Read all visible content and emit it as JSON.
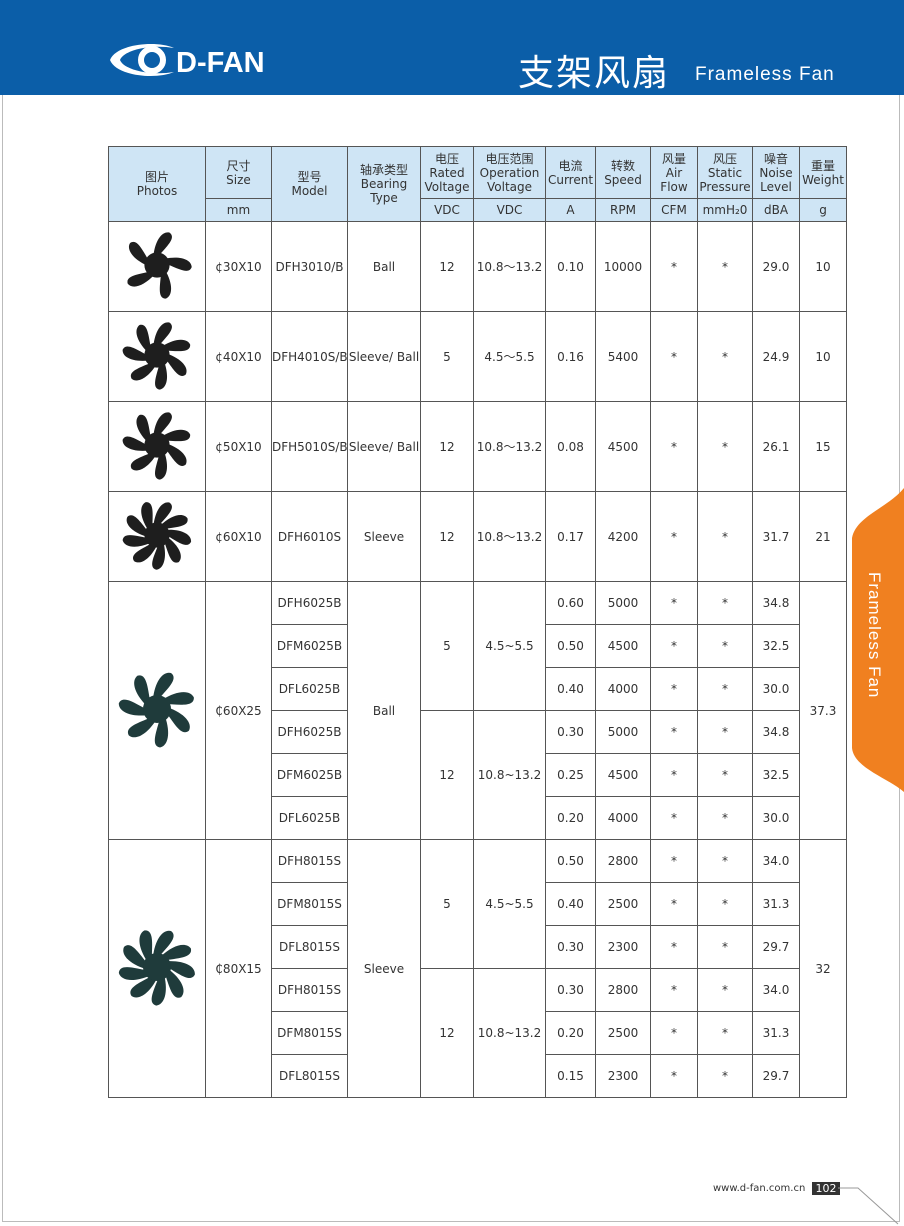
{
  "header": {
    "logo": "D-FAN",
    "title_cn": "支架风扇",
    "title_en": "Frameless Fan"
  },
  "side_tab": "Frameless Fan",
  "table": {
    "columns": [
      {
        "lines": [
          "图片",
          "Photos"
        ]
      },
      {
        "lines": [
          "尺寸",
          "Size"
        ],
        "unit": "mm"
      },
      {
        "lines": [
          "型号",
          "Model"
        ]
      },
      {
        "lines": [
          "轴承类型",
          "Bearing",
          "Type"
        ]
      },
      {
        "lines": [
          "电压",
          "Rated",
          "Voltage"
        ],
        "unit": "VDC"
      },
      {
        "lines": [
          "电压范围",
          "Operation",
          "Voltage"
        ],
        "unit": "VDC"
      },
      {
        "lines": [
          "电流",
          "Current"
        ],
        "unit": "A"
      },
      {
        "lines": [
          "转数",
          "Speed"
        ],
        "unit": "RPM"
      },
      {
        "lines": [
          "风量",
          "Air",
          "Flow"
        ],
        "unit": "CFM"
      },
      {
        "lines": [
          "风压",
          "Static",
          "Pressure"
        ],
        "unit": "mmH₂0"
      },
      {
        "lines": [
          "噪音",
          "Noise",
          "Level"
        ],
        "unit": "dBA"
      },
      {
        "lines": [
          "重量",
          "Weight"
        ],
        "unit": "g"
      }
    ],
    "groups": [
      {
        "size": "¢30X10",
        "bearing": "Ball",
        "weight": "10",
        "voltage_groups": [
          {
            "voltage": "12",
            "range": "10.8～13.2",
            "models": [
              {
                "model": "DFH3010/B",
                "current": "0.10",
                "speed": "10000",
                "airflow": "*",
                "pressure": "*",
                "noise": "29.0"
              }
            ]
          }
        ]
      },
      {
        "size": "¢40X10",
        "bearing": "Sleeve/ Ball",
        "weight": "10",
        "voltage_groups": [
          {
            "voltage": "5",
            "range": "4.5～5.5",
            "models": [
              {
                "model": "DFH4010S/B",
                "current": "0.16",
                "speed": "5400",
                "airflow": "*",
                "pressure": "*",
                "noise": "24.9"
              }
            ]
          }
        ]
      },
      {
        "size": "¢50X10",
        "bearing": "Sleeve/ Ball",
        "weight": "15",
        "voltage_groups": [
          {
            "voltage": "12",
            "range": "10.8～13.2",
            "models": [
              {
                "model": "DFH5010S/B",
                "current": "0.08",
                "speed": "4500",
                "airflow": "*",
                "pressure": "*",
                "noise": "26.1"
              }
            ]
          }
        ]
      },
      {
        "size": "¢60X10",
        "bearing": "Sleeve",
        "weight": "21",
        "voltage_groups": [
          {
            "voltage": "12",
            "range": "10.8～13.2",
            "models": [
              {
                "model": "DFH6010S",
                "current": "0.17",
                "speed": "4200",
                "airflow": "*",
                "pressure": "*",
                "noise": "31.7"
              }
            ]
          }
        ]
      },
      {
        "size": "₵60X25",
        "bearing": "Ball",
        "weight": "37.3",
        "voltage_groups": [
          {
            "voltage": "5",
            "range": "4.5~5.5",
            "models": [
              {
                "model": "DFH6025B",
                "current": "0.60",
                "speed": "5000",
                "airflow": "*",
                "pressure": "*",
                "noise": "34.8"
              },
              {
                "model": "DFM6025B",
                "current": "0.50",
                "speed": "4500",
                "airflow": "*",
                "pressure": "*",
                "noise": "32.5"
              },
              {
                "model": "DFL6025B",
                "current": "0.40",
                "speed": "4000",
                "airflow": "*",
                "pressure": "*",
                "noise": "30.0"
              }
            ]
          },
          {
            "voltage": "12",
            "range": "10.8~13.2",
            "models": [
              {
                "model": "DFH6025B",
                "current": "0.30",
                "speed": "5000",
                "airflow": "*",
                "pressure": "*",
                "noise": "34.8"
              },
              {
                "model": "DFM6025B",
                "current": "0.25",
                "speed": "4500",
                "airflow": "*",
                "pressure": "*",
                "noise": "32.5"
              },
              {
                "model": "DFL6025B",
                "current": "0.20",
                "speed": "4000",
                "airflow": "*",
                "pressure": "*",
                "noise": "30.0"
              }
            ]
          }
        ]
      },
      {
        "size": "₵80X15",
        "bearing": "Sleeve",
        "weight": "32",
        "voltage_groups": [
          {
            "voltage": "5",
            "range": "4.5~5.5",
            "models": [
              {
                "model": "DFH8015S",
                "current": "0.50",
                "speed": "2800",
                "airflow": "*",
                "pressure": "*",
                "noise": "34.0"
              },
              {
                "model": "DFM8015S",
                "current": "0.40",
                "speed": "2500",
                "airflow": "*",
                "pressure": "*",
                "noise": "31.3"
              },
              {
                "model": "DFL8015S",
                "current": "0.30",
                "speed": "2300",
                "airflow": "*",
                "pressure": "*",
                "noise": "29.7"
              }
            ]
          },
          {
            "voltage": "12",
            "range": "10.8~13.2",
            "models": [
              {
                "model": "DFH8015S",
                "current": "0.30",
                "speed": "2800",
                "airflow": "*",
                "pressure": "*",
                "noise": "34.0"
              },
              {
                "model": "DFM8015S",
                "current": "0.20",
                "speed": "2500",
                "airflow": "*",
                "pressure": "*",
                "noise": "31.3"
              },
              {
                "model": "DFL8015S",
                "current": "0.15",
                "speed": "2300",
                "airflow": "*",
                "pressure": "*",
                "noise": "29.7"
              }
            ]
          }
        ]
      }
    ]
  },
  "footer": {
    "url": "www.d-fan.com.cn",
    "page": "102"
  }
}
